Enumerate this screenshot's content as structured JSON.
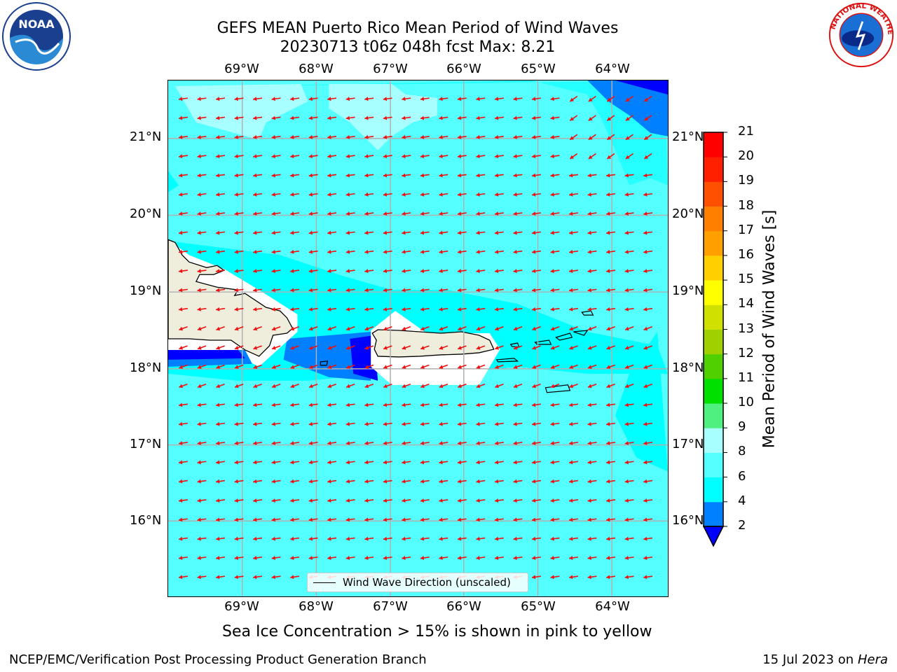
{
  "header": {
    "title_line1": "GEFS MEAN Puerto Rico Mean Period of Wind Waves",
    "title_line2": "20230713 t06z 048h fcst   Max: 8.21"
  },
  "logos": {
    "left": "NOAA",
    "right": "NATIONAL WEATHER SERVICE"
  },
  "map": {
    "lon_labels": [
      "69°W",
      "68°W",
      "67°W",
      "66°W",
      "65°W",
      "64°W"
    ],
    "lat_labels": [
      "21°N",
      "20°N",
      "19°N",
      "18°N",
      "17°N",
      "16°N"
    ],
    "legend_label": "Wind Wave Direction (unscaled)"
  },
  "colorbar": {
    "label": "Mean Period of Wind Waves [s]",
    "ticks": [
      "2",
      "4",
      "6",
      "8",
      "9",
      "10",
      "11",
      "12",
      "13",
      "14",
      "15",
      "16",
      "17",
      "18",
      "19",
      "20",
      "21"
    ],
    "colors": [
      "#0000ff",
      "#0080ff",
      "#00ffff",
      "#54ffff",
      "#a8ffff",
      "#50f080",
      "#00e000",
      "#50d000",
      "#a0d000",
      "#d0e000",
      "#ffff00",
      "#ffd000",
      "#ffa000",
      "#ff8000",
      "#ff5000",
      "#ff2000",
      "#ff0000"
    ]
  },
  "footer": {
    "note": "Sea Ice Concentration > 15% is shown in pink to yellow",
    "left": "NCEP/EMC/Verification Post Processing Product Generation Branch",
    "right_date": "15 Jul 2023 on ",
    "right_host": "Hera"
  }
}
